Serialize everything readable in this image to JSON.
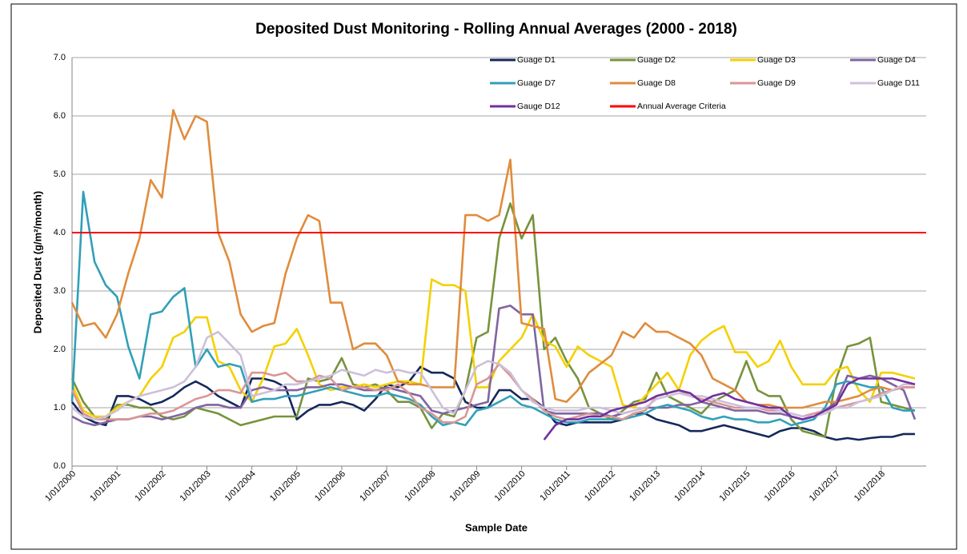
{
  "chart_data": {
    "type": "line",
    "title": "Deposited Dust Monitoring - Rolling Annual Averages (2000 - 2018)",
    "x_label": "Sample Date",
    "y_label": "Deposited Dust (g/m²/month)",
    "xlim": [
      2000,
      2019
    ],
    "ylim": [
      0,
      7
    ],
    "grid": true,
    "legend": "top-right",
    "xticks": [
      {
        "value": 2000,
        "label": "1/01/2000"
      },
      {
        "value": 2001,
        "label": "1/01/2001"
      },
      {
        "value": 2002,
        "label": "1/01/2002"
      },
      {
        "value": 2003,
        "label": "1/01/2003"
      },
      {
        "value": 2004,
        "label": "1/01/2004"
      },
      {
        "value": 2005,
        "label": "1/01/2005"
      },
      {
        "value": 2006,
        "label": "1/01/2006"
      },
      {
        "value": 2007,
        "label": "1/01/2007"
      },
      {
        "value": 2008,
        "label": "1/01/2008"
      },
      {
        "value": 2009,
        "label": "1/01/2009"
      },
      {
        "value": 2010,
        "label": "1/01/2010"
      },
      {
        "value": 2011,
        "label": "1/01/2011"
      },
      {
        "value": 2012,
        "label": "1/01/2012"
      },
      {
        "value": 2013,
        "label": "1/01/2013"
      },
      {
        "value": 2014,
        "label": "1/01/2014"
      },
      {
        "value": 2015,
        "label": "1/01/2015"
      },
      {
        "value": 2016,
        "label": "1/01/2016"
      },
      {
        "value": 2017,
        "label": "1/01/2017"
      },
      {
        "value": 2018,
        "label": "1/01/2018"
      }
    ],
    "yticks": [
      {
        "value": 0,
        "label": "0.0"
      },
      {
        "value": 1,
        "label": "1.0"
      },
      {
        "value": 2,
        "label": "2.0"
      },
      {
        "value": 3,
        "label": "3.0"
      },
      {
        "value": 4,
        "label": "4.0"
      },
      {
        "value": 5,
        "label": "5.0"
      },
      {
        "value": 6,
        "label": "6.0"
      },
      {
        "value": 7,
        "label": "7.0"
      }
    ],
    "x": [
      2000,
      2000.25,
      2000.5,
      2000.75,
      2001,
      2001.25,
      2001.5,
      2001.75,
      2002,
      2002.25,
      2002.5,
      2002.75,
      2003,
      2003.25,
      2003.5,
      2003.75,
      2004,
      2004.25,
      2004.5,
      2004.75,
      2005,
      2005.25,
      2005.5,
      2005.75,
      2006,
      2006.25,
      2006.5,
      2006.75,
      2007,
      2007.25,
      2007.5,
      2007.75,
      2008,
      2008.25,
      2008.5,
      2008.75,
      2009,
      2009.25,
      2009.5,
      2009.75,
      2010,
      2010.25,
      2010.5,
      2010.75,
      2011,
      2011.25,
      2011.5,
      2011.75,
      2012,
      2012.25,
      2012.5,
      2012.75,
      2013,
      2013.25,
      2013.5,
      2013.75,
      2014,
      2014.25,
      2014.5,
      2014.75,
      2015,
      2015.25,
      2015.5,
      2015.75,
      2016,
      2016.25,
      2016.5,
      2016.75,
      2017,
      2017.25,
      2017.5,
      2017.75,
      2018,
      2018.25,
      2018.5,
      2018.75
    ],
    "series": [
      {
        "name": "Guage D1",
        "color": "#14285a",
        "values": [
          1.1,
          0.85,
          0.75,
          0.7,
          1.2,
          1.2,
          1.15,
          1.05,
          1.1,
          1.2,
          1.35,
          1.45,
          1.35,
          1.2,
          1.1,
          1.0,
          1.5,
          1.5,
          1.45,
          1.35,
          0.8,
          0.95,
          1.05,
          1.05,
          1.1,
          1.05,
          0.95,
          1.15,
          1.4,
          1.35,
          1.45,
          1.7,
          1.6,
          1.6,
          1.5,
          1.1,
          1.0,
          1.0,
          1.3,
          1.3,
          1.15,
          1.15,
          1.0,
          0.75,
          0.7,
          0.75,
          0.75,
          0.75,
          0.75,
          0.8,
          0.9,
          0.9,
          0.8,
          0.75,
          0.7,
          0.6,
          0.6,
          0.65,
          0.7,
          0.65,
          0.6,
          0.55,
          0.5,
          0.6,
          0.65,
          0.65,
          0.6,
          0.5,
          0.45,
          0.48,
          0.45,
          0.48,
          0.5,
          0.5,
          0.55,
          0.55
        ]
      },
      {
        "name": "Guage D2",
        "color": "#77933c",
        "values": [
          1.5,
          1.1,
          0.85,
          0.8,
          1.05,
          1.05,
          1.0,
          1.0,
          0.85,
          0.8,
          0.85,
          1.0,
          0.95,
          0.9,
          0.8,
          0.7,
          0.75,
          0.8,
          0.85,
          0.85,
          0.85,
          1.5,
          1.45,
          1.5,
          1.85,
          1.4,
          1.35,
          1.4,
          1.3,
          1.1,
          1.1,
          1.0,
          0.65,
          0.9,
          0.85,
          1.3,
          2.2,
          2.3,
          3.9,
          4.5,
          3.9,
          4.3,
          2.0,
          2.2,
          1.8,
          1.5,
          1.0,
          0.9,
          0.8,
          0.95,
          1.1,
          1.15,
          1.6,
          1.2,
          1.1,
          1.0,
          0.9,
          1.1,
          1.2,
          1.3,
          1.8,
          1.3,
          1.2,
          1.2,
          0.8,
          0.6,
          0.55,
          0.5,
          1.5,
          2.05,
          2.1,
          2.2,
          1.1,
          1.05,
          1.0,
          0.95
        ]
      },
      {
        "name": "Guage D3",
        "color": "#f5d000",
        "values": [
          1.4,
          0.95,
          0.85,
          0.85,
          1.0,
          1.1,
          1.2,
          1.5,
          1.7,
          2.2,
          2.3,
          2.55,
          2.55,
          1.8,
          1.7,
          1.3,
          1.1,
          1.5,
          2.05,
          2.1,
          2.35,
          1.9,
          1.4,
          1.3,
          1.35,
          1.35,
          1.4,
          1.35,
          1.4,
          1.45,
          1.45,
          1.4,
          3.2,
          3.1,
          3.1,
          3.0,
          1.35,
          1.35,
          1.8,
          2.0,
          2.2,
          2.6,
          2.15,
          2.05,
          1.7,
          2.05,
          1.9,
          1.8,
          1.7,
          1.05,
          1.0,
          1.2,
          1.4,
          1.6,
          1.3,
          1.9,
          2.15,
          2.3,
          2.4,
          1.95,
          1.95,
          1.7,
          1.8,
          2.15,
          1.7,
          1.4,
          1.4,
          1.4,
          1.65,
          1.7,
          1.3,
          1.1,
          1.6,
          1.6,
          1.55,
          1.5
        ]
      },
      {
        "name": "Guage D4",
        "color": "#8064a2",
        "values": [
          0.85,
          0.75,
          0.7,
          0.75,
          0.8,
          0.8,
          0.85,
          0.85,
          0.8,
          0.85,
          0.9,
          1.0,
          1.05,
          1.05,
          1.0,
          1.0,
          1.3,
          1.35,
          1.3,
          1.3,
          1.3,
          1.35,
          1.35,
          1.4,
          1.4,
          1.35,
          1.3,
          1.3,
          1.35,
          1.3,
          1.25,
          1.2,
          0.95,
          0.9,
          0.95,
          1.0,
          1.05,
          1.1,
          2.7,
          2.75,
          2.6,
          2.6,
          0.95,
          0.9,
          0.9,
          0.9,
          0.9,
          0.9,
          0.85,
          0.9,
          0.95,
          1.0,
          1.0,
          1.0,
          1.05,
          1.05,
          1.1,
          1.05,
          1.0,
          0.95,
          0.95,
          0.95,
          0.9,
          0.9,
          0.85,
          0.8,
          0.85,
          0.95,
          1.1,
          1.55,
          1.5,
          1.55,
          1.5,
          1.4,
          1.3,
          0.8
        ]
      },
      {
        "name": "Guage D7",
        "color": "#31a0b8",
        "values": [
          1.1,
          4.7,
          3.5,
          3.1,
          2.9,
          2.05,
          1.5,
          2.6,
          2.65,
          2.9,
          3.05,
          1.7,
          2.0,
          1.7,
          1.75,
          1.7,
          1.1,
          1.15,
          1.15,
          1.2,
          1.2,
          1.25,
          1.3,
          1.35,
          1.3,
          1.25,
          1.2,
          1.2,
          1.25,
          1.2,
          1.15,
          1.05,
          0.85,
          0.7,
          0.75,
          0.7,
          0.95,
          1.0,
          1.1,
          1.2,
          1.05,
          1.0,
          0.9,
          0.8,
          0.75,
          0.75,
          0.8,
          0.8,
          0.8,
          0.8,
          0.85,
          0.9,
          1.0,
          1.05,
          1.0,
          0.95,
          0.85,
          0.8,
          0.85,
          0.8,
          0.8,
          0.75,
          0.75,
          0.8,
          0.7,
          0.75,
          0.8,
          1.0,
          1.4,
          1.45,
          1.4,
          1.35,
          1.35,
          1.0,
          0.95,
          0.95
        ]
      },
      {
        "name": "Guage D8",
        "color": "#e08c3c",
        "values": [
          2.8,
          2.4,
          2.45,
          2.2,
          2.6,
          3.3,
          3.9,
          4.9,
          4.6,
          6.1,
          5.6,
          6.0,
          5.9,
          4.0,
          3.5,
          2.6,
          2.3,
          2.4,
          2.45,
          3.3,
          3.9,
          4.3,
          4.2,
          2.8,
          2.8,
          2.0,
          2.1,
          2.1,
          1.9,
          1.45,
          1.4,
          1.4,
          1.35,
          1.35,
          1.35,
          4.3,
          4.3,
          4.2,
          4.3,
          5.25,
          2.45,
          2.4,
          2.35,
          1.15,
          1.1,
          1.3,
          1.6,
          1.75,
          1.9,
          2.3,
          2.2,
          2.45,
          2.3,
          2.3,
          2.2,
          2.1,
          1.9,
          1.5,
          1.4,
          1.3,
          1.1,
          1.05,
          1.05,
          1.0,
          1.0,
          1.0,
          1.05,
          1.1,
          1.1,
          1.15,
          1.2,
          1.3,
          1.35,
          1.3,
          1.35,
          1.35
        ]
      },
      {
        "name": "Guage D9",
        "color": "#d99694",
        "values": [
          1.3,
          0.9,
          0.8,
          0.8,
          0.8,
          0.8,
          0.85,
          0.9,
          0.9,
          0.95,
          1.05,
          1.15,
          1.2,
          1.3,
          1.3,
          1.25,
          1.6,
          1.6,
          1.55,
          1.6,
          1.45,
          1.45,
          1.55,
          1.5,
          1.3,
          1.35,
          1.35,
          1.3,
          1.3,
          1.4,
          1.25,
          1.0,
          0.9,
          0.75,
          0.75,
          0.85,
          1.4,
          1.5,
          1.75,
          1.55,
          1.3,
          1.15,
          0.95,
          0.85,
          0.8,
          0.85,
          0.9,
          0.85,
          0.85,
          0.8,
          0.9,
          0.95,
          1.2,
          1.25,
          1.3,
          1.2,
          1.15,
          1.1,
          1.05,
          1.0,
          1.0,
          1.0,
          0.95,
          0.95,
          0.9,
          0.85,
          0.9,
          0.95,
          1.0,
          1.05,
          1.1,
          1.15,
          1.25,
          1.3,
          1.35,
          1.35
        ]
      },
      {
        "name": "Guage D11",
        "color": "#ccc0da",
        "values": [
          1.0,
          0.85,
          0.8,
          0.85,
          0.95,
          1.1,
          1.2,
          1.25,
          1.3,
          1.35,
          1.45,
          1.7,
          2.2,
          2.3,
          2.1,
          1.9,
          1.2,
          1.25,
          1.3,
          1.4,
          1.4,
          1.45,
          1.5,
          1.55,
          1.65,
          1.6,
          1.55,
          1.65,
          1.6,
          1.65,
          1.6,
          1.6,
          1.3,
          1.0,
          0.9,
          1.3,
          1.7,
          1.8,
          1.75,
          1.6,
          1.3,
          1.1,
          1.0,
          0.95,
          0.95,
          0.95,
          1.0,
          1.0,
          0.95,
          0.9,
          0.95,
          1.0,
          1.15,
          1.2,
          1.25,
          1.2,
          1.2,
          1.15,
          1.1,
          1.05,
          1.0,
          1.0,
          1.0,
          0.95,
          0.9,
          0.85,
          0.85,
          0.9,
          1.0,
          1.0,
          1.1,
          1.15,
          1.2,
          1.3,
          1.4,
          1.4
        ]
      },
      {
        "name": "Gauge D12",
        "color": "#7030a0",
        "values": [
          null,
          null,
          null,
          null,
          null,
          null,
          null,
          null,
          null,
          null,
          null,
          null,
          null,
          null,
          null,
          null,
          null,
          null,
          null,
          null,
          null,
          null,
          null,
          null,
          null,
          null,
          null,
          null,
          null,
          null,
          null,
          null,
          null,
          null,
          null,
          null,
          null,
          null,
          null,
          null,
          null,
          null,
          0.45,
          0.7,
          0.8,
          0.8,
          0.85,
          0.85,
          0.95,
          1.0,
          1.05,
          1.1,
          1.2,
          1.25,
          1.3,
          1.25,
          1.1,
          1.2,
          1.25,
          1.15,
          1.1,
          1.05,
          1.0,
          1.0,
          0.85,
          0.8,
          0.85,
          0.95,
          1.05,
          1.4,
          1.5,
          1.5,
          1.5,
          1.5,
          1.45,
          1.4
        ]
      }
    ],
    "criteria": {
      "name": "Annual Average Criteria",
      "value": 4,
      "color": "#ff0000"
    }
  }
}
